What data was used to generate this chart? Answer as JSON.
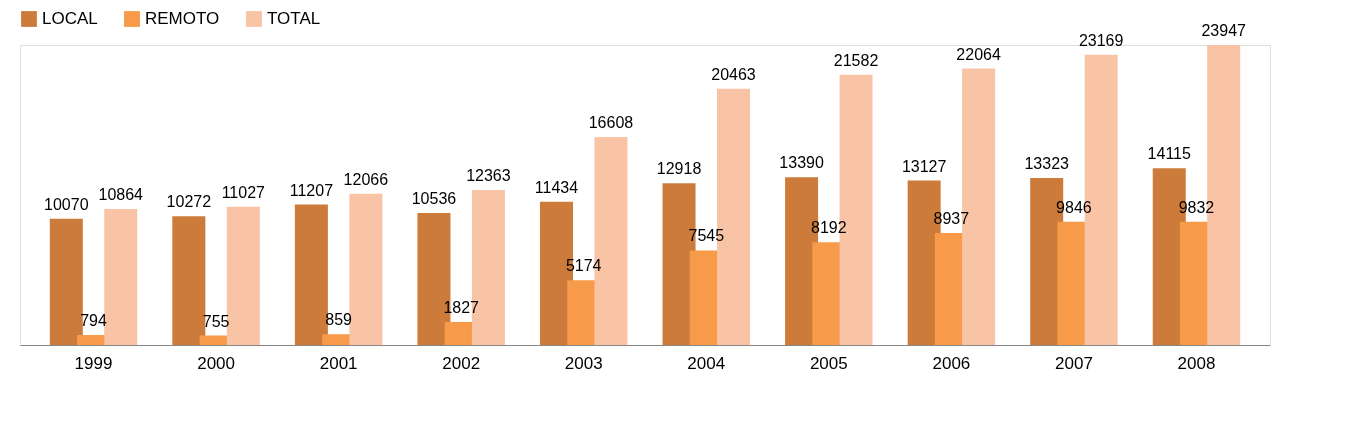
{
  "chart_data": {
    "type": "bar",
    "categories": [
      "1999",
      "2000",
      "2001",
      "2002",
      "2003",
      "2004",
      "2005",
      "2006",
      "2007",
      "2008"
    ],
    "series": [
      {
        "name": "LOCAL",
        "color": "#cc7b3a",
        "values": [
          10070,
          10272,
          11207,
          10536,
          11434,
          12918,
          13390,
          13127,
          13323,
          14115
        ]
      },
      {
        "name": "REMOTO",
        "color": "#f79a4a",
        "values": [
          794,
          755,
          859,
          1827,
          5174,
          7545,
          8192,
          8937,
          9846,
          9832
        ]
      },
      {
        "name": "TOTAL",
        "color": "#f9c3a5",
        "values": [
          10864,
          11027,
          12066,
          12363,
          16608,
          20463,
          21582,
          22064,
          23169,
          23947
        ]
      }
    ],
    "data_labels": true,
    "legend": "top",
    "grid": false
  }
}
